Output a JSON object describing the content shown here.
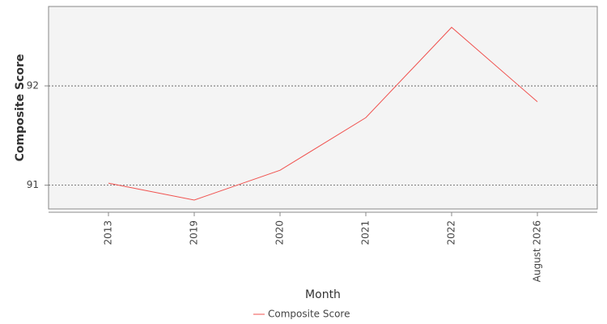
{
  "chart_data": {
    "type": "line",
    "categories": [
      "2013",
      "2019",
      "2020",
      "2021",
      "2022",
      "August 2026"
    ],
    "series": [
      {
        "name": "Composite Score",
        "color": "#f0524f",
        "values": [
          91.02,
          90.85,
          91.15,
          91.68,
          92.59,
          91.84
        ]
      }
    ],
    "ylim": [
      90.76,
      92.8
    ],
    "yticks": [
      91,
      92
    ],
    "y_label": "Composite Score",
    "x_label": "Month",
    "grid": true
  }
}
